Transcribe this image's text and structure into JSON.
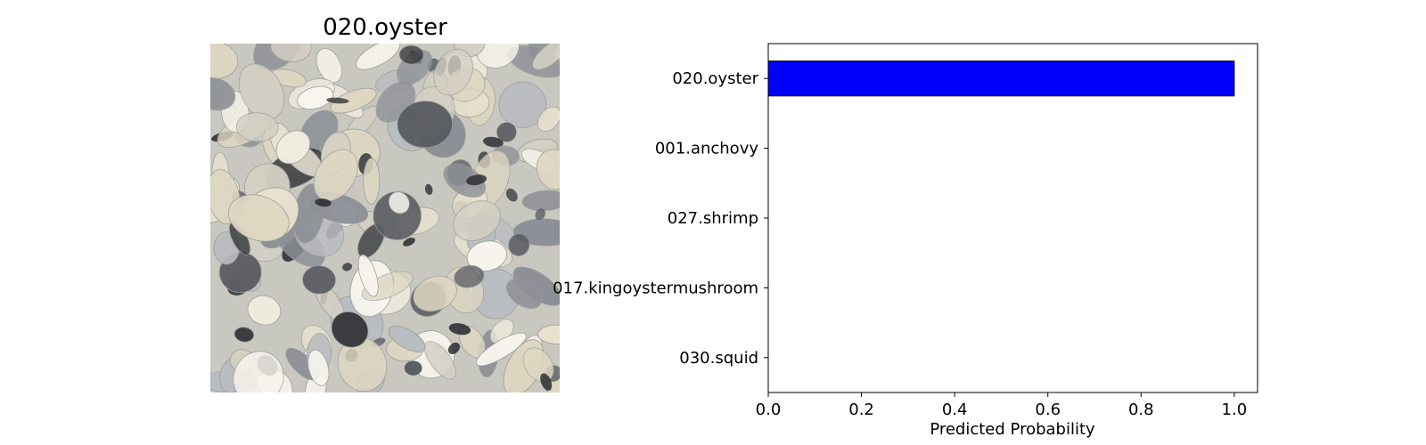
{
  "image_panel": {
    "title": "020.oyster"
  },
  "chart_data": {
    "type": "bar",
    "orientation": "horizontal",
    "categories": [
      "020.oyster",
      "001.anchovy",
      "027.shrimp",
      "017.kingoystermushroom",
      "030.squid"
    ],
    "values": [
      1.0,
      0.0,
      0.0,
      0.0,
      0.0
    ],
    "xlabel": "Predicted Probability",
    "ylabel": "",
    "xlim": [
      0,
      1.05
    ],
    "xticks": [
      "0.0",
      "0.2",
      "0.4",
      "0.6",
      "0.8",
      "1.0"
    ],
    "bar_color": "#0000ff",
    "grid": false
  }
}
